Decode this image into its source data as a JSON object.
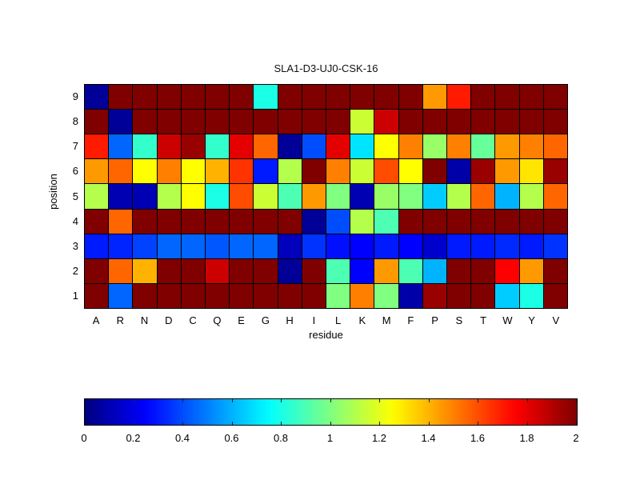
{
  "chart_data": {
    "type": "heatmap",
    "title": "SLA1-D3-UJ0-CSK-16",
    "xlabel": "residue",
    "ylabel": "position",
    "x_categories": [
      "A",
      "R",
      "N",
      "D",
      "C",
      "Q",
      "E",
      "G",
      "H",
      "I",
      "L",
      "K",
      "M",
      "F",
      "P",
      "S",
      "T",
      "W",
      "Y",
      "V"
    ],
    "y_categories": [
      "9",
      "8",
      "7",
      "6",
      "5",
      "4",
      "3",
      "2",
      "1"
    ],
    "row_order": "top-to-bottom, position 9 at top",
    "colormap": "jet",
    "clim": [
      0,
      2
    ],
    "colorbar_ticks": [
      "0",
      "0.2",
      "0.4",
      "0.6",
      "0.8",
      "1",
      "1.2",
      "1.4",
      "1.6",
      "1.8",
      "2"
    ],
    "colorbar_tick_values": [
      0,
      0.2,
      0.4,
      0.6,
      0.8,
      1,
      1.2,
      1.4,
      1.6,
      1.8,
      2
    ],
    "values": [
      [
        0.05,
        2,
        2,
        2,
        2,
        2,
        2,
        0.8,
        2,
        2,
        2,
        2,
        2,
        2,
        1.45,
        1.7,
        2,
        2,
        2,
        2
      ],
      [
        2,
        0.05,
        2,
        2,
        2,
        2,
        2,
        2,
        2,
        2,
        2,
        1.15,
        1.85,
        2,
        2,
        2,
        2,
        2,
        2,
        2
      ],
      [
        1.7,
        0.45,
        0.85,
        1.85,
        1.95,
        0.85,
        1.8,
        1.55,
        0.05,
        0.4,
        1.8,
        0.7,
        1.25,
        1.5,
        1.05,
        1.5,
        0.95,
        1.45,
        1.5,
        1.55
      ],
      [
        1.45,
        1.55,
        1.25,
        1.5,
        1.25,
        1.4,
        1.65,
        0.3,
        1.1,
        2,
        1.5,
        1.15,
        1.6,
        1.25,
        2,
        0.08,
        1.95,
        1.45,
        1.3,
        1.95
      ],
      [
        1.1,
        0.1,
        0.1,
        1.1,
        1.25,
        0.8,
        1.6,
        1.15,
        0.9,
        1.45,
        1.0,
        0.1,
        1.05,
        1.0,
        0.65,
        1.1,
        1.55,
        0.6,
        1.1,
        1.55
      ],
      [
        2,
        1.55,
        2,
        2,
        2,
        2,
        2,
        2,
        2,
        0.05,
        0.4,
        1.1,
        0.9,
        2,
        2,
        2,
        2,
        2,
        2,
        2
      ],
      [
        0.3,
        0.32,
        0.38,
        0.45,
        0.45,
        0.42,
        0.45,
        0.45,
        0.12,
        0.35,
        0.28,
        0.25,
        0.3,
        0.25,
        0.15,
        0.3,
        0.3,
        0.33,
        0.3,
        0.35
      ],
      [
        2,
        1.55,
        1.4,
        2,
        2,
        1.85,
        2,
        2,
        0.05,
        2,
        0.9,
        0.25,
        1.45,
        0.9,
        0.6,
        2,
        2,
        1.75,
        1.45,
        2
      ],
      [
        2,
        0.45,
        2,
        2,
        2,
        2,
        2,
        2,
        2,
        2,
        1.0,
        1.5,
        1.0,
        0.08,
        1.95,
        2,
        2,
        0.65,
        0.8,
        2
      ]
    ]
  }
}
